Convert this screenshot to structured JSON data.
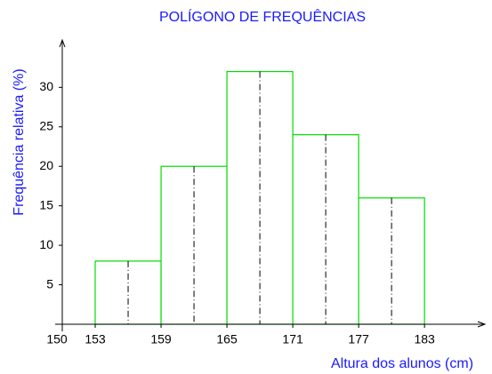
{
  "chart_data": {
    "type": "histogram",
    "title": "POLÍGONO DE FREQUÊNCIAS",
    "x_label": "Altura dos alunos (cm)",
    "y_label": "Frequência relativa (%)",
    "bins": [
      153,
      159,
      165,
      171,
      177,
      183
    ],
    "values": [
      8,
      20,
      32,
      24,
      16
    ],
    "color": "#00dd00",
    "xlim": [
      150,
      188.5
    ],
    "xticks": [
      150,
      153,
      159,
      165,
      171,
      177,
      183
    ],
    "ylim": [
      0,
      36
    ],
    "yticks": [
      5,
      10,
      15,
      20,
      25,
      30
    ]
  }
}
